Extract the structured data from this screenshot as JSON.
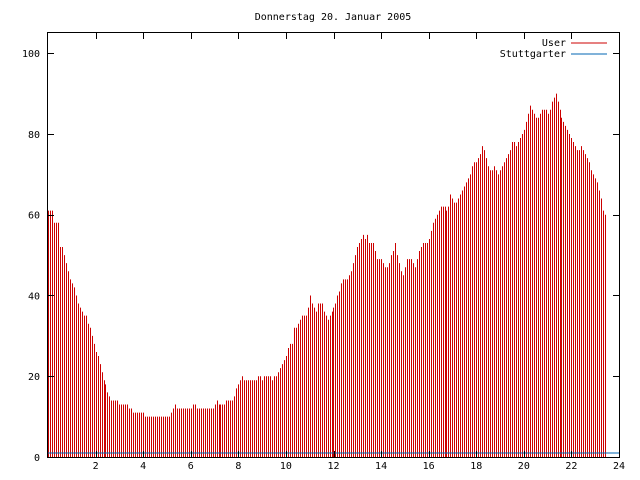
{
  "chart_data": {
    "type": "bar",
    "title": "Donnerstag 20. Januar 2005",
    "xlabel": "",
    "ylabel": "",
    "xlim": [
      0,
      24
    ],
    "ylim": [
      0,
      105
    ],
    "x_ticks": [
      2,
      4,
      6,
      8,
      10,
      12,
      14,
      16,
      18,
      20,
      22,
      24
    ],
    "y_ticks": [
      0,
      20,
      40,
      60,
      80,
      100
    ],
    "legend_position": "top-right",
    "grid": false,
    "series": [
      {
        "name": "User",
        "color": "#cc0000",
        "style": "impulses",
        "step_hours": 0.08333,
        "values": [
          61,
          61,
          61,
          58,
          58,
          58,
          52,
          52,
          50,
          48,
          46,
          44,
          43,
          42,
          40,
          38,
          37,
          36,
          35,
          35,
          33,
          32,
          30,
          28,
          26,
          25,
          23,
          21,
          19,
          18,
          16,
          15,
          14,
          14,
          14,
          14,
          13,
          13,
          13,
          13,
          13,
          12,
          12,
          11,
          11,
          11,
          11,
          11,
          11,
          10,
          10,
          10,
          10,
          10,
          10,
          10,
          10,
          10,
          10,
          10,
          10,
          10,
          11,
          12,
          13,
          12,
          12,
          12,
          12,
          12,
          12,
          12,
          12,
          13,
          13,
          12,
          12,
          12,
          12,
          12,
          12,
          12,
          12,
          12,
          13,
          14,
          13,
          13,
          13,
          13,
          14,
          14,
          14,
          14,
          15,
          17,
          18,
          19,
          20,
          19,
          19,
          19,
          19,
          19,
          19,
          19,
          20,
          20,
          19,
          20,
          20,
          20,
          20,
          19,
          20,
          20,
          21,
          22,
          23,
          24,
          25,
          27,
          28,
          28,
          32,
          32,
          33,
          34,
          35,
          35,
          35,
          37,
          40,
          38,
          37,
          36,
          38,
          38,
          38,
          36,
          35,
          34,
          35,
          36,
          37,
          38,
          40,
          41,
          43,
          44,
          44,
          44,
          45,
          46,
          48,
          50,
          52,
          53,
          54,
          55,
          54,
          55,
          53,
          53,
          53,
          51,
          49,
          49,
          49,
          48,
          47,
          47,
          48,
          50,
          51,
          53,
          50,
          48,
          46,
          45,
          47,
          49,
          49,
          49,
          48,
          47,
          49,
          51,
          52,
          53,
          53,
          53,
          54,
          56,
          58,
          59,
          60,
          61,
          62,
          62,
          62,
          61,
          62,
          65,
          64,
          63,
          63,
          64,
          65,
          66,
          67,
          68,
          69,
          70,
          72,
          73,
          73,
          74,
          75,
          77,
          76,
          74,
          72,
          71,
          71,
          72,
          71,
          70,
          71,
          72,
          73,
          74,
          75,
          76,
          78,
          78,
          77,
          78,
          79,
          80,
          81,
          83,
          85,
          87,
          86,
          85,
          84,
          84,
          85,
          86,
          86,
          86,
          85,
          86,
          88,
          89,
          90,
          88,
          86,
          84,
          83,
          82,
          81,
          80,
          79,
          78,
          77,
          76,
          76,
          77,
          76,
          75,
          74,
          73,
          71,
          70,
          69,
          68,
          66,
          64,
          61,
          60
        ]
      },
      {
        "name": "Stuttgarter",
        "color": "#0066b3",
        "style": "impulses",
        "values": [
          1,
          1
        ]
      }
    ]
  }
}
